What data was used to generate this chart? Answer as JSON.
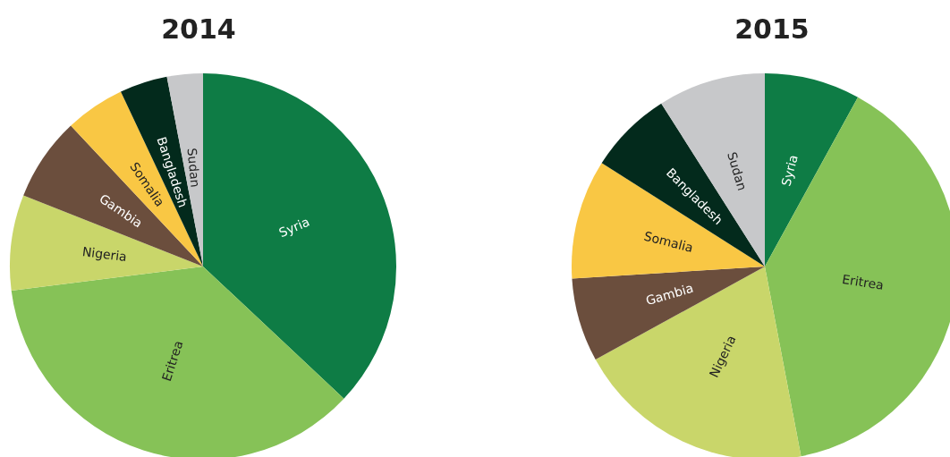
{
  "chart_data": [
    {
      "type": "pie",
      "title": "2014",
      "categories": [
        "Syria",
        "Eritrea",
        "Nigeria",
        "Gambia",
        "Somalia",
        "Bangladesh",
        "Sudan"
      ],
      "values": [
        37,
        36,
        8,
        7,
        5,
        4,
        3
      ],
      "colors": [
        "#0e7c45",
        "#86c257",
        "#c9d66a",
        "#6b4e3d",
        "#f9c744",
        "#032a1c",
        "#c7c8ca"
      ],
      "legend": false
    },
    {
      "type": "pie",
      "title": "2015",
      "categories": [
        "Syria",
        "Eritrea",
        "Nigeria",
        "Gambia",
        "Somalia",
        "Bangladesh",
        "Sudan"
      ],
      "values": [
        8,
        39,
        20,
        7,
        10,
        7,
        9
      ],
      "colors": [
        "#0e7c45",
        "#86c257",
        "#c9d66a",
        "#6b4e3d",
        "#f9c744",
        "#032a1c",
        "#c7c8ca"
      ],
      "legend": false
    }
  ]
}
